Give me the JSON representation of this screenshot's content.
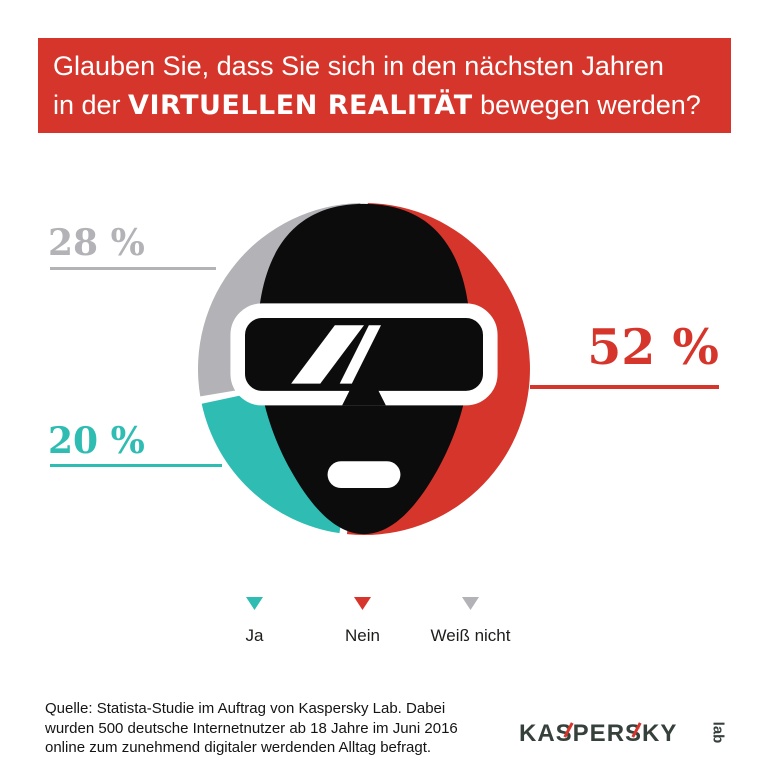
{
  "banner": {
    "background": "#d6352b",
    "line1": "Glauben Sie, dass Sie sich in den nächsten Jahren",
    "line2_prefix": "in der ",
    "line2_emphasis": "VIRTUELLEN REALITÄT",
    "line2_suffix": " bewegen werden?"
  },
  "chart_data": {
    "type": "pie",
    "subtype": "donut",
    "title": "Glauben Sie, dass Sie sich in den nächsten Jahren in der VIRTUELLEN REALITÄT bewegen werden?",
    "unit": "%",
    "start_angle_deg": 0,
    "direction": "clockwise",
    "inner_radius_ratio": 0.56,
    "legend_position": "bottom",
    "center_icon": "vr-headset-face-icon",
    "segments": [
      {
        "label": "Nein",
        "value": 52,
        "display": "52 %",
        "color": "#d6352b"
      },
      {
        "label": "Ja",
        "value": 20,
        "display": "20 %",
        "color": "#2fbdb3"
      },
      {
        "label": "Weiß nicht",
        "value": 28,
        "display": "28 %",
        "color": "#b2b2b7"
      }
    ]
  },
  "legend": {
    "items": [
      {
        "label": "Ja",
        "color": "#2fbdb3"
      },
      {
        "label": "Nein",
        "color": "#d6352b"
      },
      {
        "label": "Weiß nicht",
        "color": "#b2b2b7"
      }
    ]
  },
  "footer": {
    "source_line1": "Quelle: Statista-Studie im Auftrag von Kaspersky Lab. Dabei",
    "source_line2": "wurden 500 deutsche Internetnutzer ab 18 Jahre im Juni 2016",
    "source_line3": "online zum zunehmend digitaler werdenden Alltag befragt.",
    "brand": "KASPERSKY",
    "brand_sub": "lab"
  }
}
